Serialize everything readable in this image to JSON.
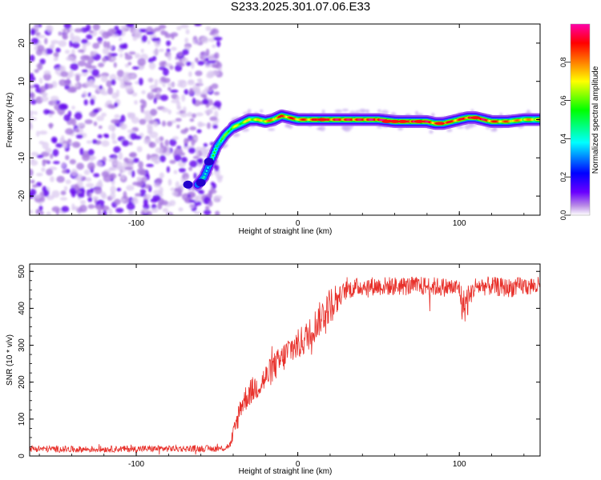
{
  "title": "S233.2025.301.07.06.E33",
  "chart_data": [
    {
      "type": "heatmap",
      "xlabel": "Height of straight line (km)",
      "ylabel": "Frequency (Hz)",
      "xlim": [
        -166,
        150
      ],
      "ylim": [
        -25,
        25
      ],
      "xticks": [
        -100,
        0,
        100
      ],
      "yticks": [
        -20,
        -10,
        0,
        10,
        20
      ],
      "colorbar": {
        "label": "Normalized spectral amplitude",
        "range": [
          0,
          1
        ],
        "ticks": [
          0.0,
          0.2,
          0.4,
          0.6,
          0.8
        ],
        "colors": [
          "#ffffff",
          "#b98ce6",
          "#6a00ff",
          "#0000ff",
          "#00ffff",
          "#00ff00",
          "#ffff00",
          "#ff7f00",
          "#ff0000",
          "#ff00aa"
        ]
      },
      "noise_region_x": [
        -166,
        -52
      ],
      "ridge": {
        "x": [
          -62,
          -58,
          -55,
          -52,
          -50,
          -45,
          -40,
          -35,
          -30,
          -25,
          -20,
          -15,
          -10,
          -5,
          0,
          10,
          20,
          30,
          40,
          50,
          60,
          70,
          80,
          85,
          90,
          95,
          100,
          105,
          110,
          115,
          120,
          130,
          140,
          150
        ],
        "frequency": [
          -17,
          -15,
          -12,
          -9,
          -7,
          -4,
          -2,
          -1,
          0,
          0,
          -0.5,
          0,
          1,
          0.5,
          0,
          0,
          0,
          0,
          0,
          0,
          -0.5,
          -0.5,
          -0.5,
          -1,
          -1,
          -0.5,
          0,
          0.5,
          0.5,
          0,
          -0.5,
          -0.5,
          0,
          0
        ],
        "amplitude": [
          0.4,
          0.4,
          0.45,
          0.5,
          0.5,
          0.55,
          0.6,
          0.6,
          0.65,
          0.65,
          0.7,
          0.75,
          0.8,
          0.8,
          0.75,
          0.8,
          0.85,
          0.85,
          0.85,
          0.9,
          0.9,
          0.9,
          0.85,
          0.8,
          0.85,
          0.8,
          0.8,
          0.85,
          0.9,
          0.85,
          0.8,
          0.75,
          0.7,
          0.7
        ]
      }
    },
    {
      "type": "line",
      "xlabel": "Height of straight line (km)",
      "ylabel": "SNR (10 * v/v)",
      "xlim": [
        -166,
        150
      ],
      "ylim": [
        0,
        520
      ],
      "xticks": [
        -100,
        0,
        100
      ],
      "yticks": [
        0,
        100,
        200,
        300,
        400,
        500
      ],
      "series": [
        {
          "color": "#e8302a",
          "x": [
            -166,
            -140,
            -110,
            -80,
            -60,
            -50,
            -45,
            -42,
            -40,
            -38,
            -35,
            -30,
            -25,
            -20,
            -15,
            -10,
            -5,
            0,
            5,
            10,
            15,
            20,
            25,
            30,
            40,
            50,
            60,
            80,
            100,
            102,
            110,
            120,
            130,
            140,
            150
          ],
          "values": [
            20,
            18,
            19,
            20,
            20,
            20,
            22,
            30,
            50,
            90,
            140,
            170,
            190,
            210,
            240,
            260,
            290,
            300,
            320,
            350,
            380,
            410,
            430,
            450,
            460,
            460,
            460,
            460,
            455,
            400,
            460,
            460,
            455,
            460,
            460
          ]
        }
      ]
    }
  ]
}
